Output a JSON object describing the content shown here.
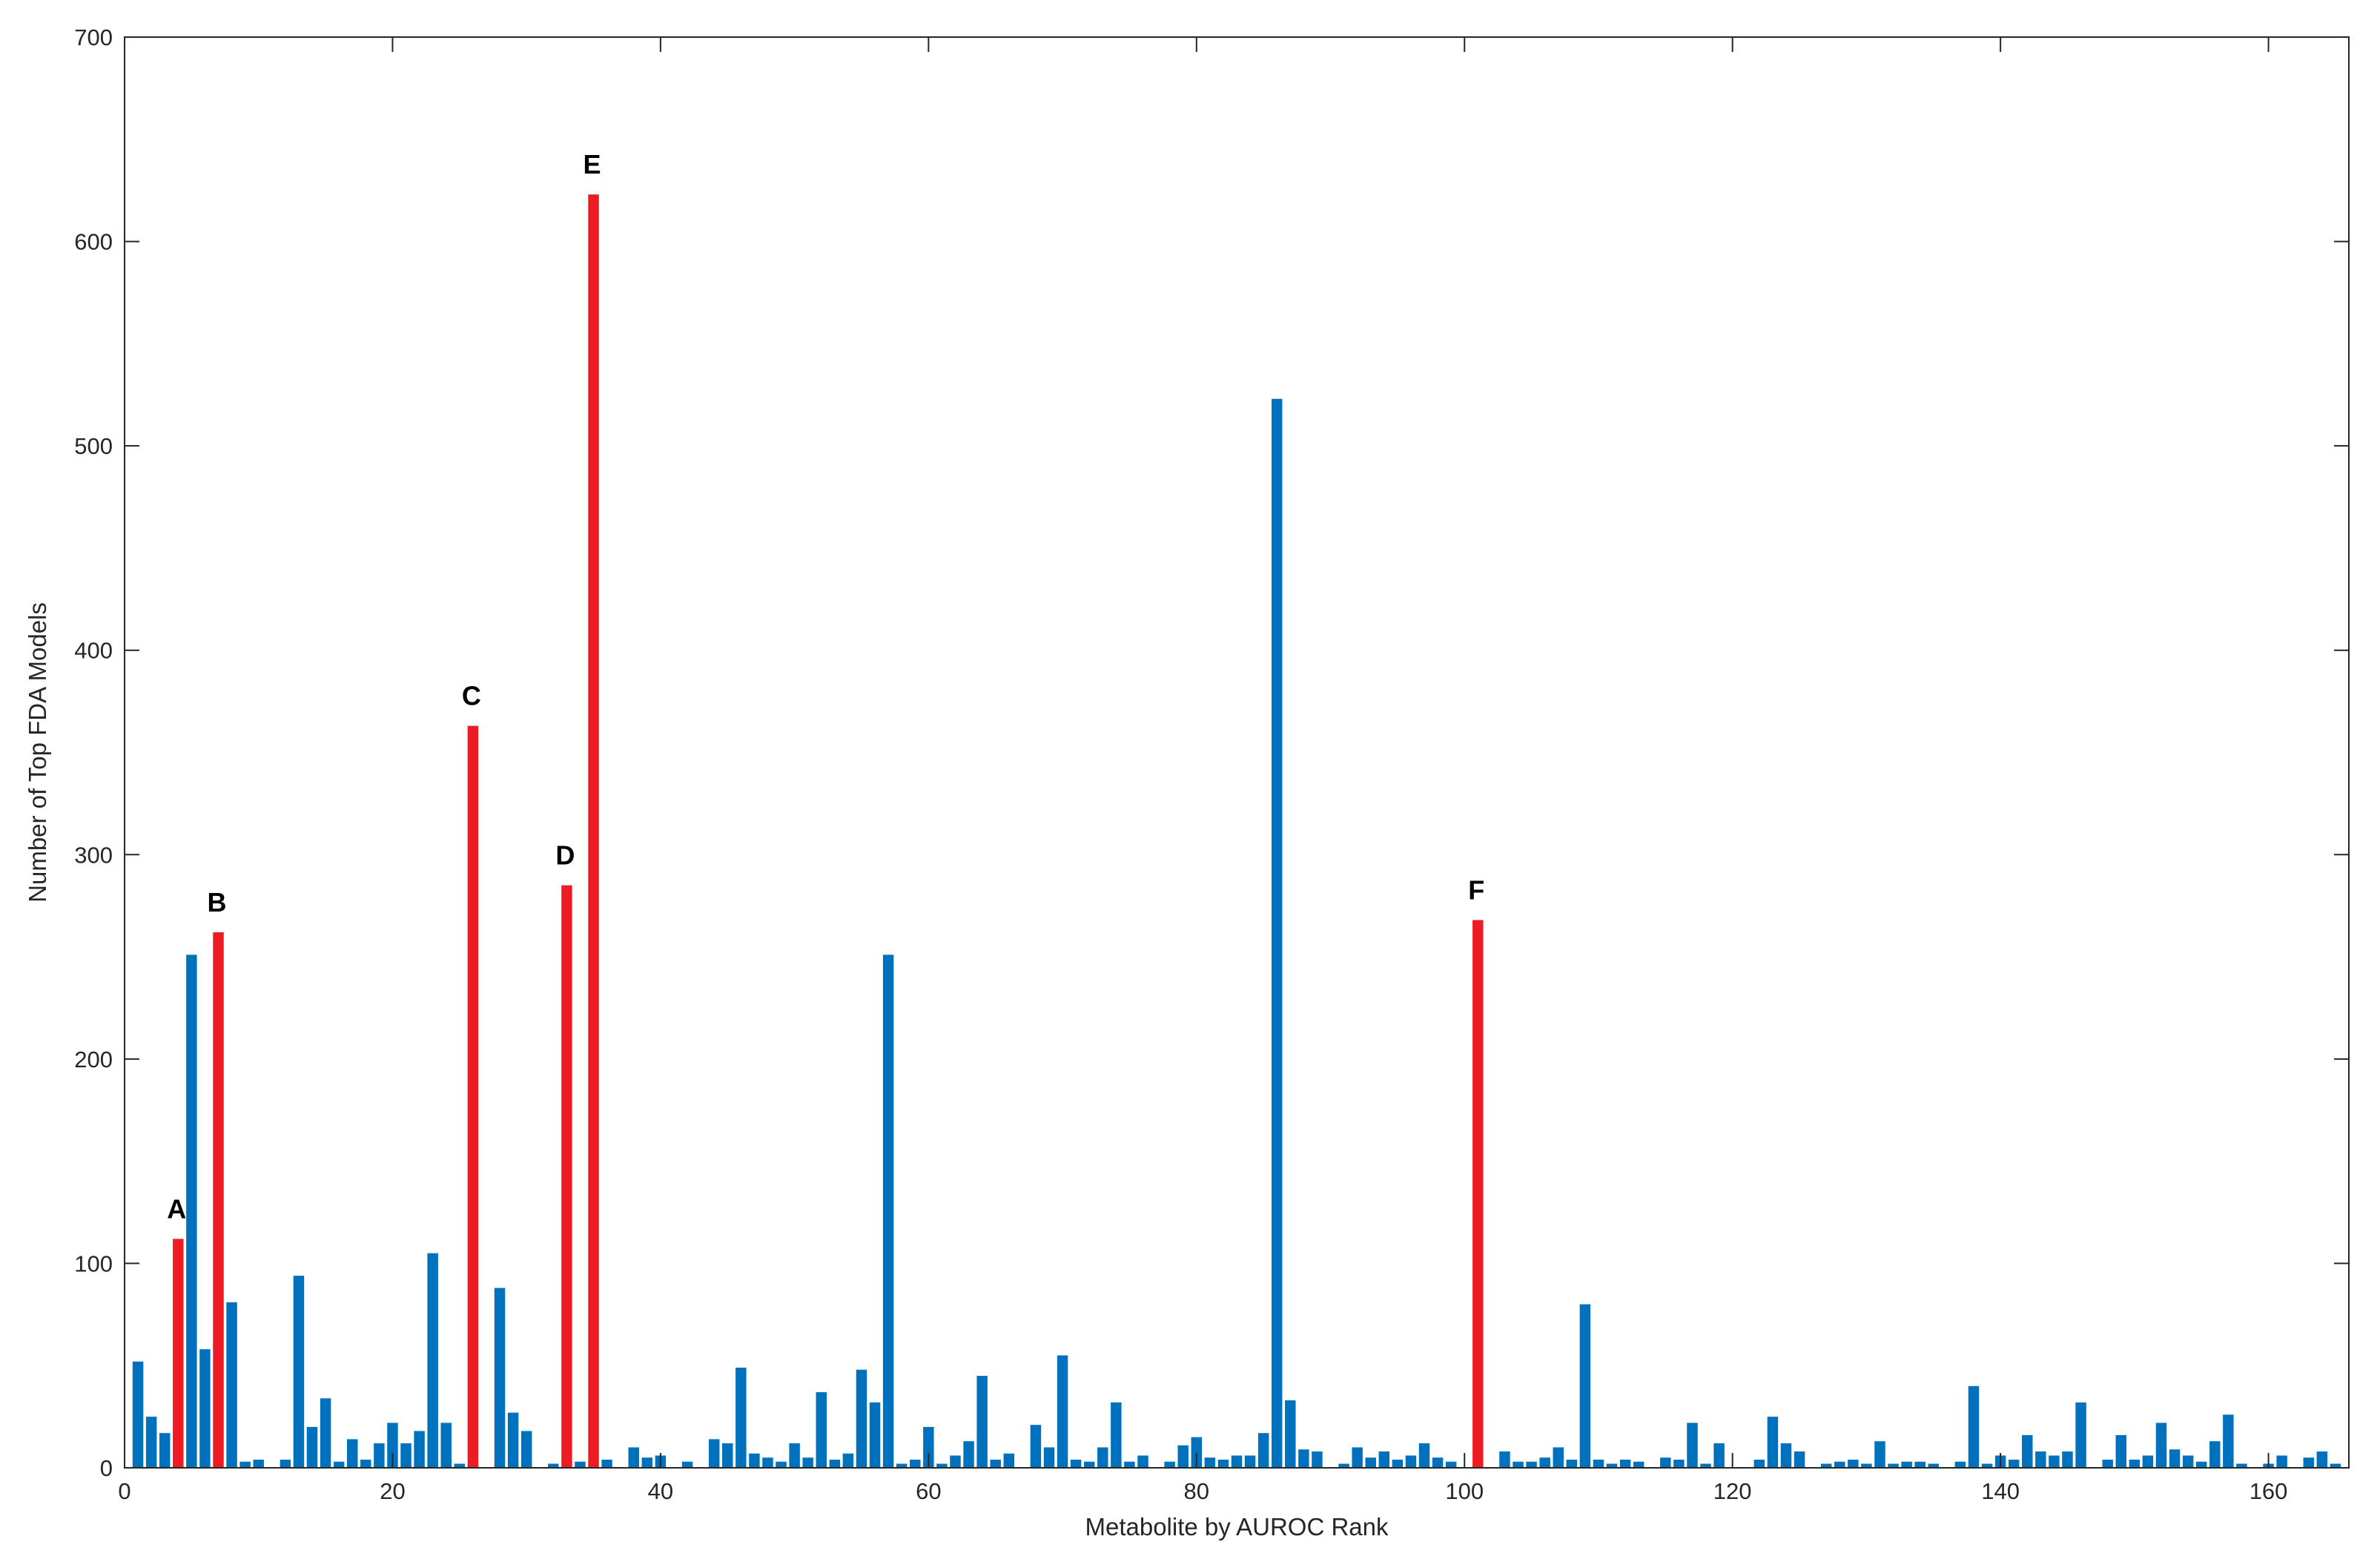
{
  "chart_data": {
    "type": "bar",
    "title": "",
    "xlabel": "Metabolite by AUROC Rank",
    "ylabel": "Number of Top FDA Models",
    "xlim": [
      0,
      166
    ],
    "ylim": [
      0,
      700
    ],
    "xticks": [
      0,
      20,
      40,
      60,
      80,
      100,
      120,
      140,
      160
    ],
    "yticks": [
      0,
      100,
      200,
      300,
      400,
      500,
      600,
      700
    ],
    "grid": false,
    "colors": {
      "default": "#0072BD",
      "highlight": "#ED1C24"
    },
    "x": [
      1,
      2,
      3,
      4,
      5,
      6,
      7,
      8,
      9,
      10,
      11,
      12,
      13,
      14,
      15,
      16,
      17,
      18,
      19,
      20,
      21,
      22,
      23,
      24,
      25,
      26,
      27,
      28,
      29,
      30,
      31,
      32,
      33,
      34,
      35,
      36,
      37,
      38,
      39,
      40,
      41,
      42,
      43,
      44,
      45,
      46,
      47,
      48,
      49,
      50,
      51,
      52,
      53,
      54,
      55,
      56,
      57,
      58,
      59,
      60,
      61,
      62,
      63,
      64,
      65,
      66,
      67,
      68,
      69,
      70,
      71,
      72,
      73,
      74,
      75,
      76,
      77,
      78,
      79,
      80,
      81,
      82,
      83,
      84,
      85,
      86,
      87,
      88,
      89,
      90,
      91,
      92,
      93,
      94,
      95,
      96,
      97,
      98,
      99,
      100,
      101,
      102,
      103,
      104,
      105,
      106,
      107,
      108,
      109,
      110,
      111,
      112,
      113,
      114,
      115,
      116,
      117,
      118,
      119,
      120,
      121,
      122,
      123,
      124,
      125,
      126,
      127,
      128,
      129,
      130,
      131,
      132,
      133,
      134,
      135,
      136,
      137,
      138,
      139,
      140,
      141,
      142,
      143,
      144,
      145,
      146,
      147,
      148,
      149,
      150,
      151,
      152,
      153,
      154,
      155,
      156,
      157,
      158,
      159,
      160,
      161,
      162,
      163,
      164,
      165
    ],
    "values": [
      52,
      25,
      17,
      112,
      251,
      58,
      262,
      81,
      3,
      4,
      0,
      4,
      94,
      20,
      34,
      3,
      14,
      4,
      12,
      22,
      12,
      18,
      105,
      22,
      2,
      363,
      0,
      88,
      27,
      18,
      0,
      2,
      285,
      3,
      623,
      4,
      0,
      10,
      5,
      6,
      0,
      3,
      0,
      14,
      12,
      49,
      7,
      5,
      3,
      12,
      5,
      37,
      4,
      7,
      48,
      32,
      251,
      2,
      4,
      20,
      2,
      6,
      13,
      45,
      4,
      7,
      0,
      21,
      10,
      55,
      4,
      3,
      10,
      32,
      3,
      6,
      0,
      3,
      11,
      15,
      5,
      4,
      6,
      6,
      17,
      523,
      33,
      9,
      8,
      0,
      2,
      10,
      5,
      8,
      4,
      6,
      12,
      5,
      3,
      0,
      268,
      0,
      8,
      3,
      3,
      5,
      10,
      4,
      80,
      4,
      2,
      4,
      3,
      0,
      5,
      4,
      22,
      2,
      12,
      0,
      0,
      4,
      25,
      12,
      8,
      0,
      2,
      3,
      4,
      2,
      13,
      2,
      3,
      3,
      2,
      0,
      3,
      40,
      2,
      6,
      4,
      16,
      8,
      6,
      8,
      32,
      0,
      4,
      16,
      4,
      6,
      22,
      9,
      6,
      3,
      13,
      26,
      2,
      0,
      2,
      6,
      0,
      5,
      8,
      2
    ],
    "highlighted": [
      {
        "x": 4,
        "label": "A"
      },
      {
        "x": 7,
        "label": "B"
      },
      {
        "x": 26,
        "label": "C"
      },
      {
        "x": 33,
        "label": "D"
      },
      {
        "x": 35,
        "label": "E"
      },
      {
        "x": 101,
        "label": "F"
      }
    ]
  }
}
